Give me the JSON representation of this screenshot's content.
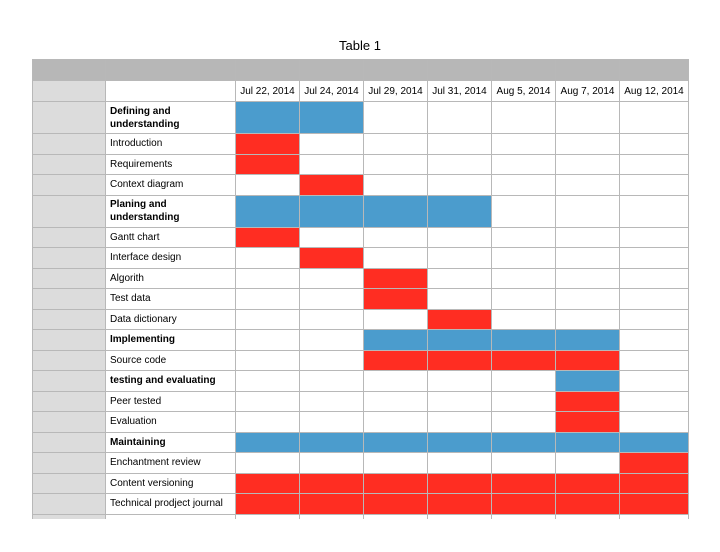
{
  "title": "Table 1",
  "colors": {
    "phase": "#4b9ccd",
    "task": "#ff2d22"
  },
  "dates": [
    "Jul 22, 2014",
    "Jul 24, 2014",
    "Jul 29, 2014",
    "Jul 31, 2014",
    "Aug 5, 2014",
    "Aug 7, 2014",
    "Aug 12, 2014"
  ],
  "rows": [
    {
      "label": "Defining and understanding",
      "kind": "phase",
      "active": [
        0,
        1
      ]
    },
    {
      "label": "Introduction",
      "kind": "task",
      "active": [
        0
      ]
    },
    {
      "label": "Requirements",
      "kind": "task",
      "active": [
        0
      ]
    },
    {
      "label": "Context diagram",
      "kind": "task",
      "active": [
        1
      ]
    },
    {
      "label": "Planing and understanding",
      "kind": "phase",
      "active": [
        0,
        1,
        2,
        3
      ]
    },
    {
      "label": "Gantt chart",
      "kind": "task",
      "active": [
        0
      ]
    },
    {
      "label": "Interface design",
      "kind": "task",
      "active": [
        1
      ]
    },
    {
      "label": "Algorith",
      "kind": "task",
      "active": [
        2
      ]
    },
    {
      "label": "Test data",
      "kind": "task",
      "active": [
        2
      ]
    },
    {
      "label": "Data dictionary",
      "kind": "task",
      "active": [
        3
      ]
    },
    {
      "label": "Implementing",
      "kind": "phase-single",
      "active": [
        2,
        3,
        4,
        5
      ]
    },
    {
      "label": "Source code",
      "kind": "task",
      "active": [
        2,
        3,
        4,
        5
      ]
    },
    {
      "label": "testing and evaluating",
      "kind": "phase-single",
      "active": [
        5
      ]
    },
    {
      "label": "Peer tested",
      "kind": "task",
      "active": [
        5
      ]
    },
    {
      "label": "Evaluation",
      "kind": "task",
      "active": [
        5
      ]
    },
    {
      "label": "Maintaining",
      "kind": "phase-single",
      "active": [
        0,
        1,
        2,
        3,
        4,
        5,
        6
      ]
    },
    {
      "label": "Enchantment review",
      "kind": "task",
      "active": [
        6
      ]
    },
    {
      "label": "Content versioning",
      "kind": "task",
      "active": [
        0,
        1,
        2,
        3,
        4,
        5,
        6
      ]
    },
    {
      "label": "Technical prodject journal",
      "kind": "task",
      "active": [
        0,
        1,
        2,
        3,
        4,
        5,
        6
      ]
    }
  ]
}
